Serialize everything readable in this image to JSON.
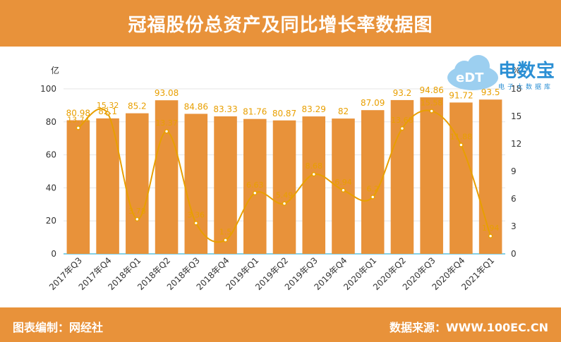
{
  "header": {
    "title": "冠福股份总资产及同比增长率数据图"
  },
  "footer": {
    "left_text": "图表编制：网经社",
    "right_text": "数据来源：WWW.100EC.CN"
  },
  "logo": {
    "name": "电数宝",
    "sub": "电子大数据库",
    "badge": "eDT"
  },
  "colors": {
    "bar": "#E8923A",
    "line": "#E89F00",
    "banner": "#E8923A",
    "logo": "#2B8FD4"
  },
  "chart_data": {
    "type": "bar",
    "categories": [
      "2017年Q3",
      "2017年Q4",
      "2018年Q1",
      "2018年Q2",
      "2018年Q3",
      "2018年Q4",
      "2019年Q1",
      "2019年Q2",
      "2019年Q3",
      "2019年Q4",
      "2020年Q1",
      "2020年Q2",
      "2020年Q3",
      "2020年Q4",
      "2021年Q1"
    ],
    "left_unit": "亿",
    "right_unit": "%",
    "ylim_left": [
      0,
      100
    ],
    "ylim_right": [
      0,
      18
    ],
    "yticks_left": [
      "0",
      "20",
      "40",
      "60",
      "80",
      "100"
    ],
    "yticks_right": [
      "0",
      "3",
      "6",
      "9",
      "12",
      "15",
      "18"
    ],
    "grid": true,
    "series": [
      {
        "type": "bar",
        "axis": "left",
        "values": [
          80.98,
          82.1,
          85.2,
          93.08,
          84.86,
          83.33,
          81.76,
          80.87,
          83.29,
          82,
          87.09,
          93.2,
          94.86,
          91.72,
          93.5
        ]
      },
      {
        "type": "line",
        "axis": "right",
        "values": [
          13.74,
          15.32,
          3.78,
          13.37,
          3.36,
          1.5,
          6.63,
          5.49,
          8.68,
          6.94,
          6.2,
          13.68,
          15.58,
          11.88,
          1.94
        ]
      }
    ]
  }
}
